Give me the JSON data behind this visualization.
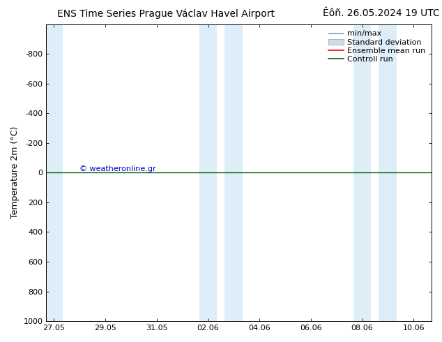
{
  "title_left": "ENS Time Series Prague Václav Havel Airport",
  "title_right": "Êôñ. 26.05.2024 19 UTC",
  "ylabel": "Temperature 2m (°C)",
  "ylim_top": -1000,
  "ylim_bottom": 1000,
  "yticks": [
    -800,
    -600,
    -400,
    -200,
    0,
    200,
    400,
    600,
    800,
    1000
  ],
  "xtick_labels": [
    "27.05",
    "29.05",
    "31.05",
    "02.06",
    "04.06",
    "06.06",
    "08.06",
    "10.06"
  ],
  "xtick_positions": [
    0,
    2,
    4,
    6,
    8,
    10,
    12,
    14
  ],
  "xlim": [
    -0.3,
    14.7
  ],
  "shaded_bands": [
    {
      "x_start": -0.3,
      "x_end": 0.35,
      "color": "#ddeef8"
    },
    {
      "x_start": 5.65,
      "x_end": 6.35,
      "color": "#ddeef8"
    },
    {
      "x_start": 6.65,
      "x_end": 7.35,
      "color": "#ddeef8"
    },
    {
      "x_start": 11.65,
      "x_end": 12.35,
      "color": "#ddeef8"
    },
    {
      "x_start": 12.65,
      "x_end": 13.35,
      "color": "#ddeef8"
    }
  ],
  "green_line_y": 0,
  "copyright_text": "© weatheronline.gr",
  "copyright_color": "#0000cc",
  "legend_entries": [
    "min/max",
    "Standard deviation",
    "Ensemble mean run",
    "Controll run"
  ],
  "legend_line_color": "#999999",
  "legend_std_color": "#ccdde8",
  "legend_ens_color": "#ff0000",
  "legend_ctrl_color": "#006600",
  "background_color": "#ffffff",
  "title_fontsize": 10,
  "tick_fontsize": 8,
  "ylabel_fontsize": 9,
  "legend_fontsize": 8
}
